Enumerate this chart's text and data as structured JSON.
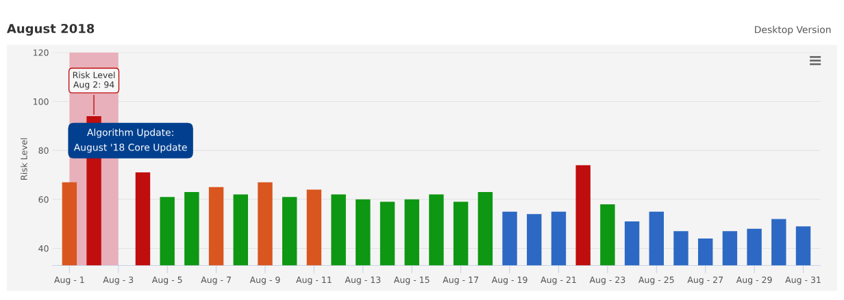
{
  "chart_data": {
    "type": "bar",
    "title": "August 2018",
    "subtitle": "Desktop Version",
    "ylabel": "Risk Level",
    "categories": [
      "Aug - 1",
      null,
      "Aug - 3",
      null,
      "Aug - 5",
      null,
      "Aug - 7",
      null,
      "Aug - 9",
      null,
      "Aug - 11",
      null,
      "Aug - 13",
      null,
      "Aug - 15",
      null,
      "Aug - 17",
      null,
      "Aug - 19",
      null,
      "Aug - 21",
      null,
      "Aug - 23",
      null,
      "Aug - 25",
      null,
      "Aug - 27",
      null,
      "Aug - 29",
      null,
      "Aug - 31"
    ],
    "values": [
      67,
      94,
      null,
      71,
      61,
      63,
      65,
      62,
      67,
      61,
      64,
      62,
      60,
      59,
      60,
      62,
      59,
      63,
      55,
      54,
      55,
      74,
      58,
      51,
      55,
      47,
      44,
      47,
      48,
      52,
      49
    ],
    "colors": [
      "#d9561f",
      "#c00d0d",
      "#c00d0d",
      "#c00d0d",
      "#0e9712",
      "#0e9712",
      "#d9561f",
      "#0e9712",
      "#d9561f",
      "#0e9712",
      "#d9561f",
      "#0e9712",
      "#0e9712",
      "#0e9712",
      "#0e9712",
      "#0e9712",
      "#0e9712",
      "#0e9712",
      "#2d69c4",
      "#2d69c4",
      "#2d69c4",
      "#c00d0d",
      "#0e9712",
      "#2d69c4",
      "#2d69c4",
      "#2d69c4",
      "#2d69c4",
      "#2d69c4",
      "#2d69c4",
      "#2d69c4",
      "#2d69c4"
    ],
    "ylim": [
      33,
      120
    ],
    "yticks": [
      40,
      60,
      80,
      100,
      120
    ],
    "grid": "y",
    "bands": [
      {
        "axis": "x",
        "from": "Aug - 1",
        "to": "Aug - 3",
        "color": "#e8b0ba"
      }
    ],
    "annotations": [
      {
        "text": "Risk Level\nAug 2: 94",
        "y": 94
      },
      "Algorithm Update:\nAugust '18 Core Update"
    ]
  }
}
